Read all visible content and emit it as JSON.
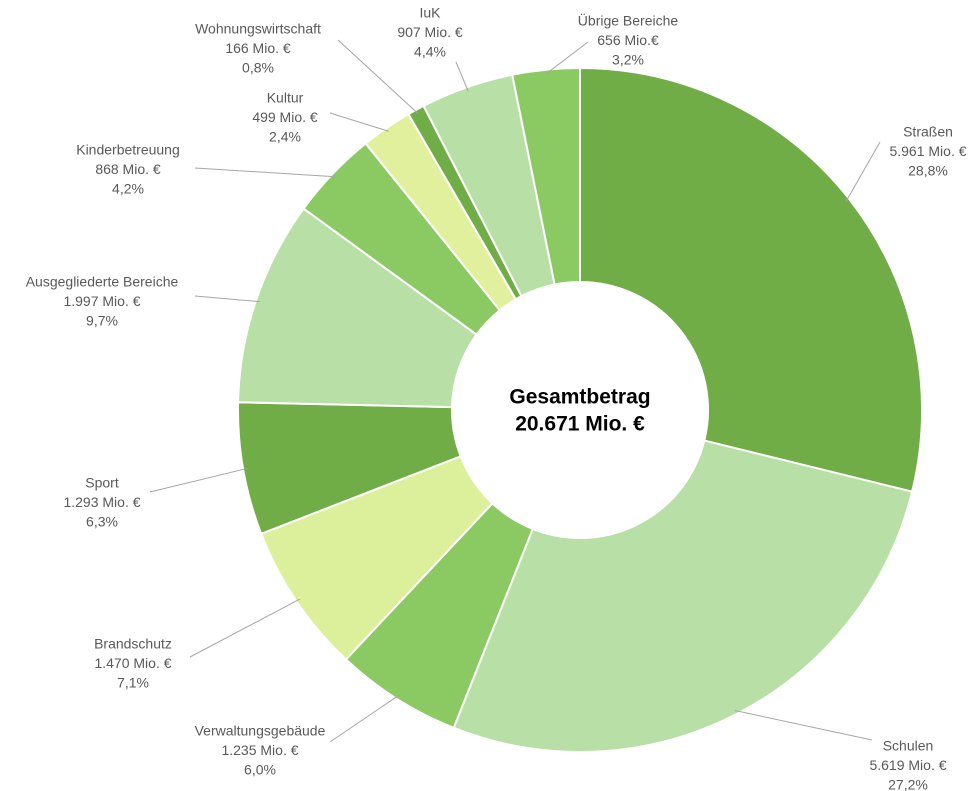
{
  "chart_data": {
    "type": "donut",
    "center_text": [
      "Gesamtbetrag",
      "20.671 Mio. €"
    ],
    "categories": [
      "Straßen",
      "Schulen",
      "Verwaltungsgebäude",
      "Brandschutz",
      "Sport",
      "Ausgegliederte Bereiche",
      "Kinderbetreuung",
      "Kultur",
      "Wohnungswirtschaft",
      "IuK",
      "Übrige Bereiche"
    ],
    "values": [
      5961,
      5619,
      1235,
      1470,
      1293,
      1997,
      868,
      499,
      166,
      907,
      656
    ],
    "value_labels": [
      "5.961 Mio. €",
      "5.619 Mio. €",
      "1.235 Mio. €",
      "1.470 Mio. €",
      "1.293 Mio. €",
      "1.997 Mio. €",
      "868 Mio. €",
      "499 Mio. €",
      "166 Mio. €",
      "907 Mio. €",
      "656 Mio.€"
    ],
    "share_labels": [
      "28,8%",
      "27,2%",
      "6,0%",
      "7,1%",
      "6,3%",
      "9,7%",
      "4,2%",
      "2,4%",
      "0,8%",
      "4,4%",
      "3,2%"
    ],
    "colors": [
      "#70ad47",
      "#b8dfa6",
      "#8bc963",
      "#dcef9a",
      "#70ad47",
      "#b8dfa6",
      "#8bc963",
      "#e0f09c",
      "#70ad47",
      "#b8dfa6",
      "#8bc963"
    ]
  }
}
